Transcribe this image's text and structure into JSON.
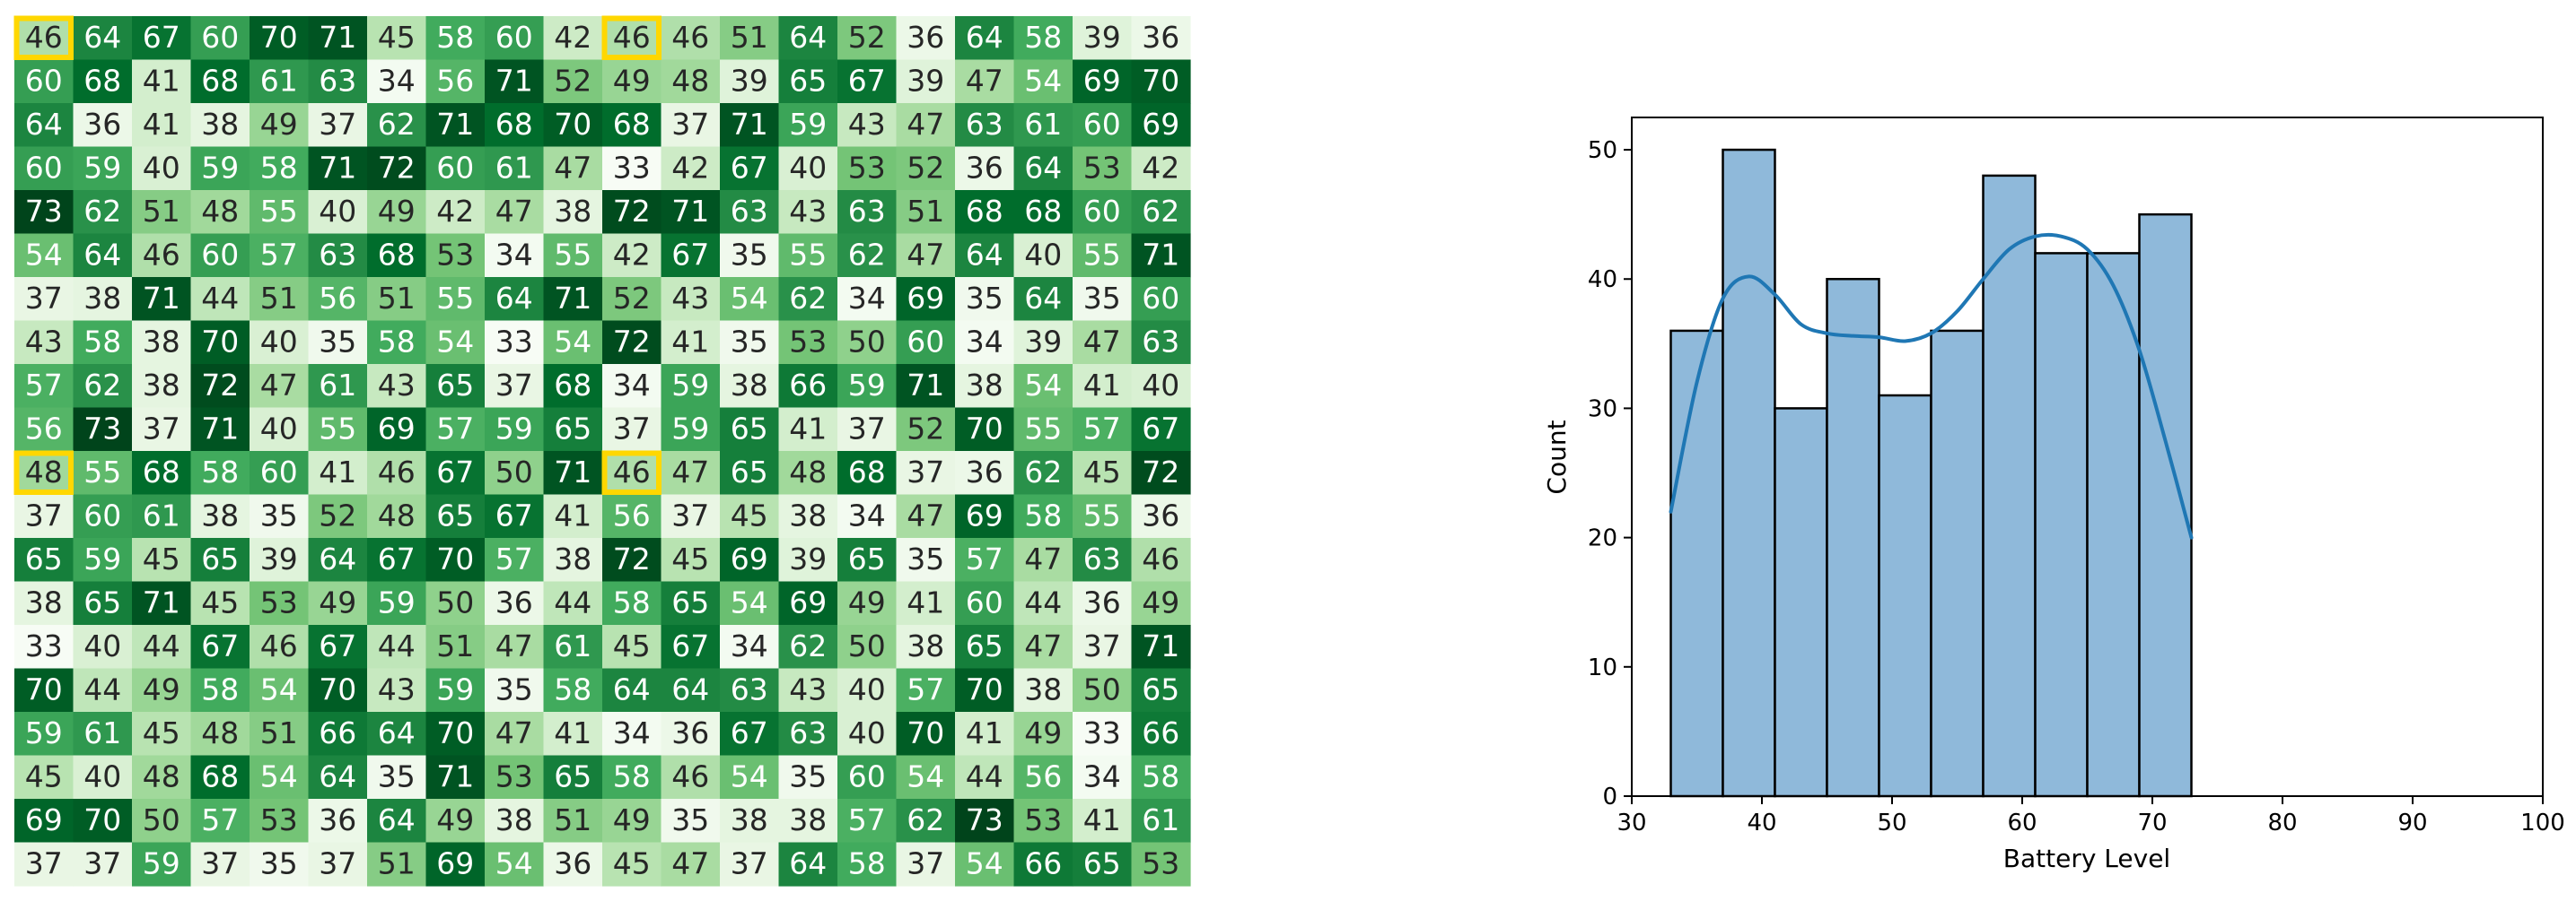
{
  "colors": {
    "heat_low": "#f7fcf5",
    "heat_high": "#00441b",
    "highlight": "#ffd700",
    "bar_fill": "#8fb9da",
    "kde_line": "#1f77b4",
    "edge": "#000000"
  },
  "chart_data": [
    {
      "type": "heatmap",
      "vmin": 33,
      "vmax": 73,
      "highlighted_cells": [
        [
          0,
          0
        ],
        [
          0,
          10
        ],
        [
          10,
          0
        ],
        [
          10,
          10
        ]
      ],
      "values": [
        [
          46,
          64,
          67,
          60,
          70,
          71,
          45,
          58,
          60,
          42,
          46,
          46,
          51,
          64,
          52,
          36,
          64,
          58,
          39,
          36
        ],
        [
          60,
          68,
          41,
          68,
          61,
          63,
          34,
          56,
          71,
          52,
          49,
          48,
          39,
          65,
          67,
          39,
          47,
          54,
          69,
          70
        ],
        [
          64,
          36,
          41,
          38,
          49,
          37,
          62,
          71,
          68,
          70,
          68,
          37,
          71,
          59,
          43,
          47,
          63,
          61,
          60,
          69
        ],
        [
          60,
          59,
          40,
          59,
          58,
          71,
          72,
          60,
          61,
          47,
          33,
          42,
          67,
          40,
          53,
          52,
          36,
          64,
          53,
          42
        ],
        [
          73,
          62,
          51,
          48,
          55,
          40,
          49,
          42,
          47,
          38,
          72,
          71,
          63,
          43,
          63,
          51,
          68,
          68,
          60,
          62
        ],
        [
          54,
          64,
          46,
          60,
          57,
          63,
          68,
          53,
          34,
          55,
          42,
          67,
          35,
          55,
          62,
          47,
          64,
          40,
          55,
          71
        ],
        [
          37,
          38,
          71,
          44,
          51,
          56,
          51,
          55,
          64,
          71,
          52,
          43,
          54,
          62,
          34,
          69,
          35,
          64,
          35,
          60
        ],
        [
          43,
          58,
          38,
          70,
          40,
          35,
          58,
          54,
          33,
          54,
          72,
          41,
          35,
          53,
          50,
          60,
          34,
          39,
          47,
          63
        ],
        [
          57,
          62,
          38,
          72,
          47,
          61,
          43,
          65,
          37,
          68,
          34,
          59,
          38,
          66,
          59,
          71,
          38,
          54,
          41,
          40
        ],
        [
          56,
          73,
          37,
          71,
          40,
          55,
          69,
          57,
          59,
          65,
          37,
          59,
          65,
          41,
          37,
          52,
          70,
          55,
          57,
          67
        ],
        [
          48,
          55,
          68,
          58,
          60,
          41,
          46,
          67,
          50,
          71,
          46,
          47,
          65,
          48,
          68,
          37,
          36,
          62,
          45,
          72
        ],
        [
          37,
          60,
          61,
          38,
          35,
          52,
          48,
          65,
          67,
          41,
          56,
          37,
          45,
          38,
          34,
          47,
          69,
          58,
          55,
          36
        ],
        [
          65,
          59,
          45,
          65,
          39,
          64,
          67,
          70,
          57,
          38,
          72,
          45,
          69,
          39,
          65,
          35,
          57,
          47,
          63,
          46
        ],
        [
          38,
          65,
          71,
          45,
          53,
          49,
          59,
          50,
          36,
          44,
          58,
          65,
          54,
          69,
          49,
          41,
          60,
          44,
          36,
          49
        ],
        [
          33,
          40,
          44,
          67,
          46,
          67,
          44,
          51,
          47,
          61,
          45,
          67,
          34,
          62,
          50,
          38,
          65,
          47,
          37,
          71
        ],
        [
          70,
          44,
          49,
          58,
          54,
          70,
          43,
          59,
          35,
          58,
          64,
          64,
          63,
          43,
          40,
          57,
          70,
          38,
          50,
          65
        ],
        [
          59,
          61,
          45,
          48,
          51,
          66,
          64,
          70,
          47,
          41,
          34,
          36,
          67,
          63,
          40,
          70,
          41,
          49,
          33,
          66
        ],
        [
          45,
          40,
          48,
          68,
          54,
          64,
          35,
          71,
          53,
          65,
          58,
          46,
          54,
          35,
          60,
          54,
          44,
          56,
          34,
          58
        ],
        [
          69,
          70,
          50,
          57,
          53,
          36,
          64,
          49,
          38,
          51,
          49,
          35,
          38,
          38,
          57,
          62,
          73,
          53,
          41,
          61
        ],
        [
          37,
          37,
          59,
          37,
          35,
          37,
          51,
          69,
          54,
          36,
          45,
          47,
          37,
          64,
          58,
          37,
          54,
          66,
          65,
          53
        ]
      ]
    },
    {
      "type": "bar",
      "subtype": "histogram_with_kde",
      "xlabel": "Battery Level",
      "ylabel": "Count",
      "xlim": [
        30,
        100
      ],
      "ylim": [
        0,
        52.5
      ],
      "xticks": [
        30,
        40,
        50,
        60,
        70,
        80,
        90,
        100
      ],
      "yticks": [
        0,
        10,
        20,
        30,
        40,
        50
      ],
      "bins": [
        {
          "x0": 33,
          "x1": 37,
          "count": 36
        },
        {
          "x0": 37,
          "x1": 41,
          "count": 50
        },
        {
          "x0": 41,
          "x1": 45,
          "count": 30
        },
        {
          "x0": 45,
          "x1": 49,
          "count": 40
        },
        {
          "x0": 49,
          "x1": 53,
          "count": 31
        },
        {
          "x0": 53,
          "x1": 57,
          "count": 36
        },
        {
          "x0": 57,
          "x1": 61,
          "count": 48
        },
        {
          "x0": 61,
          "x1": 65,
          "count": 42
        },
        {
          "x0": 65,
          "x1": 69,
          "count": 42
        },
        {
          "x0": 69,
          "x1": 73,
          "count": 45
        }
      ],
      "kde": {
        "x": [
          33,
          35,
          37,
          39,
          41,
          43,
          45,
          47,
          49,
          51,
          53,
          55,
          57,
          59,
          61,
          63,
          65,
          67,
          69,
          71,
          73
        ],
        "y": [
          22,
          32,
          38.5,
          40.2,
          38.8,
          36.5,
          35.8,
          35.6,
          35.5,
          35.2,
          35.8,
          37.5,
          40,
          42.3,
          43.3,
          43.3,
          42.3,
          39.5,
          34.5,
          27.5,
          20
        ]
      }
    }
  ]
}
